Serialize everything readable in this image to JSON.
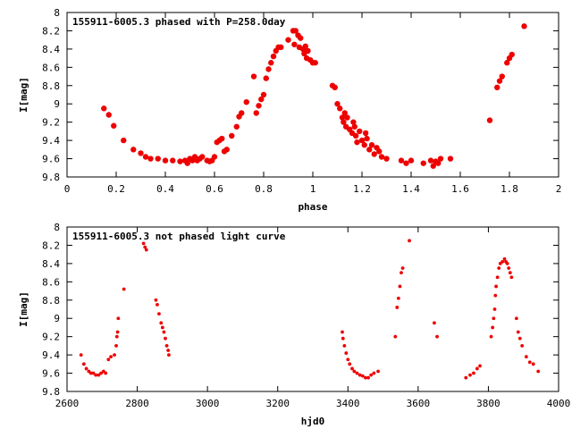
{
  "chart_data": [
    {
      "type": "scatter",
      "title": "155911-6005.3 phased with P=258.0day",
      "xlabel": "phase",
      "ylabel": "I[mag]",
      "xlim": [
        0,
        2
      ],
      "ylim": [
        9.8,
        8
      ],
      "y_inverted": true,
      "grid": false,
      "xticks": [
        0,
        0.2,
        0.4,
        0.6,
        0.8,
        1,
        1.2,
        1.4,
        1.6,
        1.8,
        2
      ],
      "yticks": [
        8,
        8.2,
        8.4,
        8.6,
        8.8,
        9,
        9.2,
        9.4,
        9.6,
        9.8
      ],
      "marker_color": "#ee0000",
      "series": [
        {
          "points": [
            [
              0.15,
              9.05
            ],
            [
              0.17,
              9.12
            ],
            [
              0.19,
              9.24
            ],
            [
              0.23,
              9.4
            ],
            [
              0.27,
              9.5
            ],
            [
              0.3,
              9.54
            ],
            [
              0.32,
              9.58
            ],
            [
              0.34,
              9.6
            ],
            [
              0.37,
              9.6
            ],
            [
              0.4,
              9.62
            ],
            [
              0.43,
              9.62
            ],
            [
              0.46,
              9.63
            ],
            [
              0.48,
              9.62
            ],
            [
              0.49,
              9.65
            ],
            [
              0.5,
              9.6
            ],
            [
              0.51,
              9.62
            ],
            [
              0.52,
              9.58
            ],
            [
              0.53,
              9.62
            ],
            [
              0.54,
              9.6
            ],
            [
              0.55,
              9.58
            ],
            [
              0.57,
              9.62
            ],
            [
              0.58,
              9.63
            ],
            [
              0.59,
              9.62
            ],
            [
              0.6,
              9.58
            ],
            [
              0.61,
              9.42
            ],
            [
              0.62,
              9.4
            ],
            [
              0.63,
              9.38
            ],
            [
              0.64,
              9.52
            ],
            [
              0.65,
              9.5
            ],
            [
              0.67,
              9.35
            ],
            [
              0.69,
              9.25
            ],
            [
              0.7,
              9.14
            ],
            [
              0.71,
              9.1
            ],
            [
              0.73,
              8.98
            ],
            [
              0.76,
              8.7
            ],
            [
              0.77,
              9.1
            ],
            [
              0.78,
              9.02
            ],
            [
              0.79,
              8.95
            ],
            [
              0.8,
              8.9
            ],
            [
              0.81,
              8.72
            ],
            [
              0.82,
              8.62
            ],
            [
              0.83,
              8.55
            ],
            [
              0.84,
              8.48
            ],
            [
              0.85,
              8.42
            ],
            [
              0.86,
              8.38
            ],
            [
              0.87,
              8.38
            ],
            [
              0.9,
              8.3
            ],
            [
              0.92,
              8.2
            ],
            [
              0.925,
              8.35
            ],
            [
              0.93,
              8.2
            ],
            [
              0.94,
              8.25
            ],
            [
              0.945,
              8.38
            ],
            [
              0.95,
              8.28
            ],
            [
              0.96,
              8.4
            ],
            [
              0.965,
              8.45
            ],
            [
              0.97,
              8.37
            ],
            [
              0.975,
              8.5
            ],
            [
              0.98,
              8.42
            ],
            [
              0.99,
              8.52
            ],
            [
              1.0,
              8.55
            ],
            [
              1.01,
              8.55
            ],
            [
              1.08,
              8.8
            ],
            [
              1.09,
              8.82
            ],
            [
              1.1,
              9.0
            ],
            [
              1.11,
              9.05
            ],
            [
              1.12,
              9.15
            ],
            [
              1.125,
              9.2
            ],
            [
              1.13,
              9.1
            ],
            [
              1.135,
              9.25
            ],
            [
              1.14,
              9.15
            ],
            [
              1.15,
              9.28
            ],
            [
              1.16,
              9.32
            ],
            [
              1.165,
              9.2
            ],
            [
              1.17,
              9.25
            ],
            [
              1.175,
              9.35
            ],
            [
              1.18,
              9.42
            ],
            [
              1.19,
              9.3
            ],
            [
              1.2,
              9.4
            ],
            [
              1.21,
              9.45
            ],
            [
              1.215,
              9.32
            ],
            [
              1.22,
              9.38
            ],
            [
              1.23,
              9.5
            ],
            [
              1.24,
              9.45
            ],
            [
              1.25,
              9.55
            ],
            [
              1.26,
              9.48
            ],
            [
              1.27,
              9.52
            ],
            [
              1.28,
              9.58
            ],
            [
              1.3,
              9.6
            ],
            [
              1.36,
              9.62
            ],
            [
              1.38,
              9.65
            ],
            [
              1.4,
              9.62
            ],
            [
              1.45,
              9.65
            ],
            [
              1.48,
              9.62
            ],
            [
              1.49,
              9.68
            ],
            [
              1.5,
              9.63
            ],
            [
              1.51,
              9.65
            ],
            [
              1.52,
              9.6
            ],
            [
              1.56,
              9.6
            ],
            [
              1.72,
              9.18
            ],
            [
              1.75,
              8.82
            ],
            [
              1.76,
              8.75
            ],
            [
              1.77,
              8.7
            ],
            [
              1.79,
              8.55
            ],
            [
              1.8,
              8.5
            ],
            [
              1.81,
              8.46
            ],
            [
              1.86,
              8.15
            ]
          ]
        }
      ]
    },
    {
      "type": "scatter",
      "title": "155911-6005.3 not phased light curve",
      "xlabel": "hjd0",
      "ylabel": "I[mag]",
      "xlim": [
        2600,
        4000
      ],
      "ylim": [
        9.8,
        8
      ],
      "y_inverted": true,
      "grid": false,
      "xticks": [
        2600,
        2800,
        3000,
        3200,
        3400,
        3600,
        3800,
        4000
      ],
      "yticks": [
        8,
        8.2,
        8.4,
        8.6,
        8.8,
        9,
        9.2,
        9.4,
        9.6,
        9.8
      ],
      "marker_color": "#ee0000",
      "series": [
        {
          "points": [
            [
              2640,
              9.4
            ],
            [
              2648,
              9.5
            ],
            [
              2655,
              9.55
            ],
            [
              2662,
              9.58
            ],
            [
              2668,
              9.6
            ],
            [
              2675,
              9.6
            ],
            [
              2682,
              9.62
            ],
            [
              2690,
              9.62
            ],
            [
              2697,
              9.6
            ],
            [
              2704,
              9.58
            ],
            [
              2710,
              9.6
            ],
            [
              2718,
              9.45
            ],
            [
              2725,
              9.42
            ],
            [
              2735,
              9.4
            ],
            [
              2740,
              9.3
            ],
            [
              2742,
              9.2
            ],
            [
              2744,
              9.15
            ],
            [
              2746,
              9.0
            ],
            [
              2762,
              8.68
            ],
            [
              2818,
              8.18
            ],
            [
              2822,
              8.22
            ],
            [
              2826,
              8.25
            ],
            [
              2853,
              8.8
            ],
            [
              2857,
              8.85
            ],
            [
              2862,
              8.95
            ],
            [
              2868,
              9.05
            ],
            [
              2872,
              9.1
            ],
            [
              2876,
              9.15
            ],
            [
              2880,
              9.22
            ],
            [
              2884,
              9.3
            ],
            [
              2888,
              9.35
            ],
            [
              2890,
              9.4
            ],
            [
              3384,
              9.15
            ],
            [
              3386,
              9.22
            ],
            [
              3390,
              9.3
            ],
            [
              3395,
              9.38
            ],
            [
              3400,
              9.45
            ],
            [
              3405,
              9.5
            ],
            [
              3412,
              9.55
            ],
            [
              3418,
              9.58
            ],
            [
              3426,
              9.6
            ],
            [
              3434,
              9.62
            ],
            [
              3442,
              9.63
            ],
            [
              3450,
              9.65
            ],
            [
              3458,
              9.65
            ],
            [
              3466,
              9.62
            ],
            [
              3474,
              9.6
            ],
            [
              3486,
              9.58
            ],
            [
              3535,
              9.2
            ],
            [
              3540,
              8.88
            ],
            [
              3544,
              8.78
            ],
            [
              3548,
              8.65
            ],
            [
              3552,
              8.5
            ],
            [
              3556,
              8.45
            ],
            [
              3575,
              8.15
            ],
            [
              3646,
              9.05
            ],
            [
              3654,
              9.2
            ],
            [
              3736,
              9.65
            ],
            [
              3748,
              9.62
            ],
            [
              3758,
              9.6
            ],
            [
              3768,
              9.55
            ],
            [
              3776,
              9.52
            ],
            [
              3808,
              9.2
            ],
            [
              3812,
              9.1
            ],
            [
              3815,
              9.0
            ],
            [
              3818,
              8.9
            ],
            [
              3820,
              8.75
            ],
            [
              3822,
              8.65
            ],
            [
              3826,
              8.55
            ],
            [
              3830,
              8.45
            ],
            [
              3834,
              8.4
            ],
            [
              3840,
              8.38
            ],
            [
              3846,
              8.35
            ],
            [
              3850,
              8.38
            ],
            [
              3854,
              8.4
            ],
            [
              3858,
              8.45
            ],
            [
              3862,
              8.5
            ],
            [
              3866,
              8.55
            ],
            [
              3880,
              9.0
            ],
            [
              3885,
              9.15
            ],
            [
              3890,
              9.22
            ],
            [
              3896,
              9.3
            ],
            [
              3908,
              9.42
            ],
            [
              3918,
              9.48
            ],
            [
              3928,
              9.5
            ],
            [
              3942,
              9.58
            ]
          ]
        }
      ]
    }
  ]
}
